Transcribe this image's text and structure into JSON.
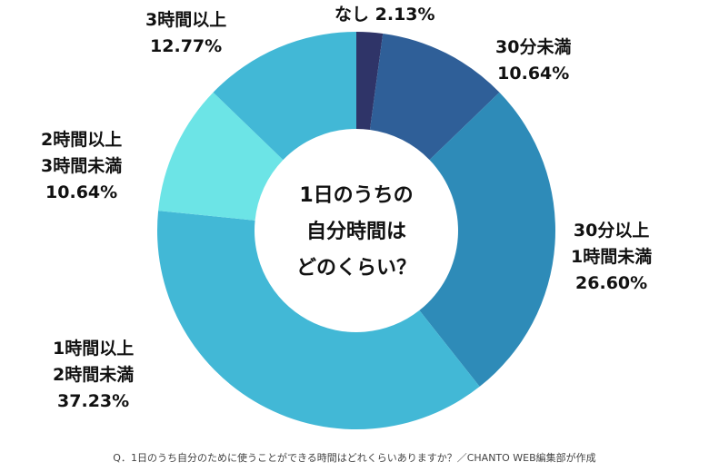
{
  "chart_data": {
    "type": "pie",
    "donut": true,
    "center_title": [
      "1日のうちの",
      "自分時間は",
      "どのくらい？"
    ],
    "slices": [
      {
        "label": [
          "なし"
        ],
        "value": 2.13,
        "value_label": "2.13%",
        "color": "#2f3468"
      },
      {
        "label": [
          "30分未満"
        ],
        "value": 10.64,
        "value_label": "10.64%",
        "color": "#2f5f98"
      },
      {
        "label": [
          "30分以上",
          "1時間未満"
        ],
        "value": 26.6,
        "value_label": "26.60%",
        "color": "#2e8bb8"
      },
      {
        "label": [
          "1時間以上",
          "2時間未満"
        ],
        "value": 37.23,
        "value_label": "37.23%",
        "color": "#42b8d6"
      },
      {
        "label": [
          "2時間以上",
          "3時間未満"
        ],
        "value": 10.64,
        "value_label": "10.64%",
        "color": "#6ce4e6"
      },
      {
        "label": [
          "3時間以上"
        ],
        "value": 12.77,
        "value_label": "12.77%",
        "color": "#42b8d6"
      }
    ],
    "source": "Q．1日のうち自分のために使うことができる時間はどれくらいありますか？／CHANTO WEB編集部が作成"
  }
}
